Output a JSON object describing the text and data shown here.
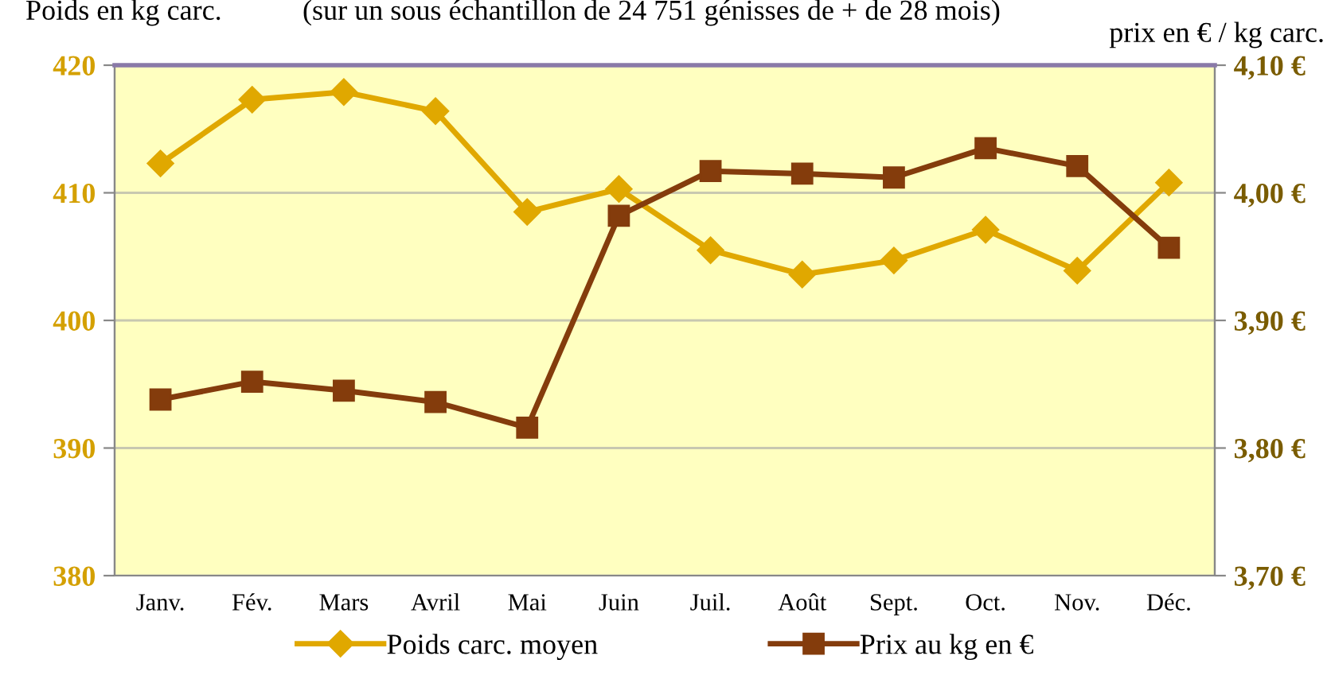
{
  "chart_data": {
    "type": "line",
    "subtitle": "(sur un sous échantillon de 24 751 génisses de + de 28 mois)",
    "ylabel": "Poids en kg carc.",
    "y2label": "prix en € / kg carc.",
    "categories": [
      "Janv.",
      "Fév.",
      "Mars",
      "Avril",
      "Mai",
      "Juin",
      "Juil.",
      "Août",
      "Sept.",
      "Oct.",
      "Nov.",
      "Déc."
    ],
    "series": [
      {
        "name": "Poids carc. moyen",
        "color": "#e0a800",
        "marker": "diamond",
        "values": [
          412.3,
          417.3,
          417.9,
          416.4,
          408.5,
          410.3,
          405.5,
          403.6,
          404.7,
          407.1,
          403.9,
          410.8
        ]
      },
      {
        "name": "Prix au kg en €",
        "color": "#843c0c",
        "marker": "square",
        "axis": "y2",
        "values": [
          3.838,
          3.852,
          3.845,
          3.836,
          3.816,
          3.982,
          4.017,
          4.015,
          4.012,
          4.035,
          4.021,
          3.957
        ]
      }
    ],
    "ylim": [
      380,
      420
    ],
    "yticks": [
      380,
      390,
      400,
      410,
      420
    ],
    "y2lim": [
      3.7,
      4.1
    ],
    "y2ticks": [
      {
        "value": 3.7,
        "label": "3,70 €"
      },
      {
        "value": 3.8,
        "label": "3,80 €"
      },
      {
        "value": 3.9,
        "label": "3,90 €"
      },
      {
        "value": 4.0,
        "label": "4,00 €"
      },
      {
        "value": 4.1,
        "label": "4,10 €"
      }
    ],
    "grid": "y",
    "legend": "bottom",
    "line_style": "solid"
  }
}
